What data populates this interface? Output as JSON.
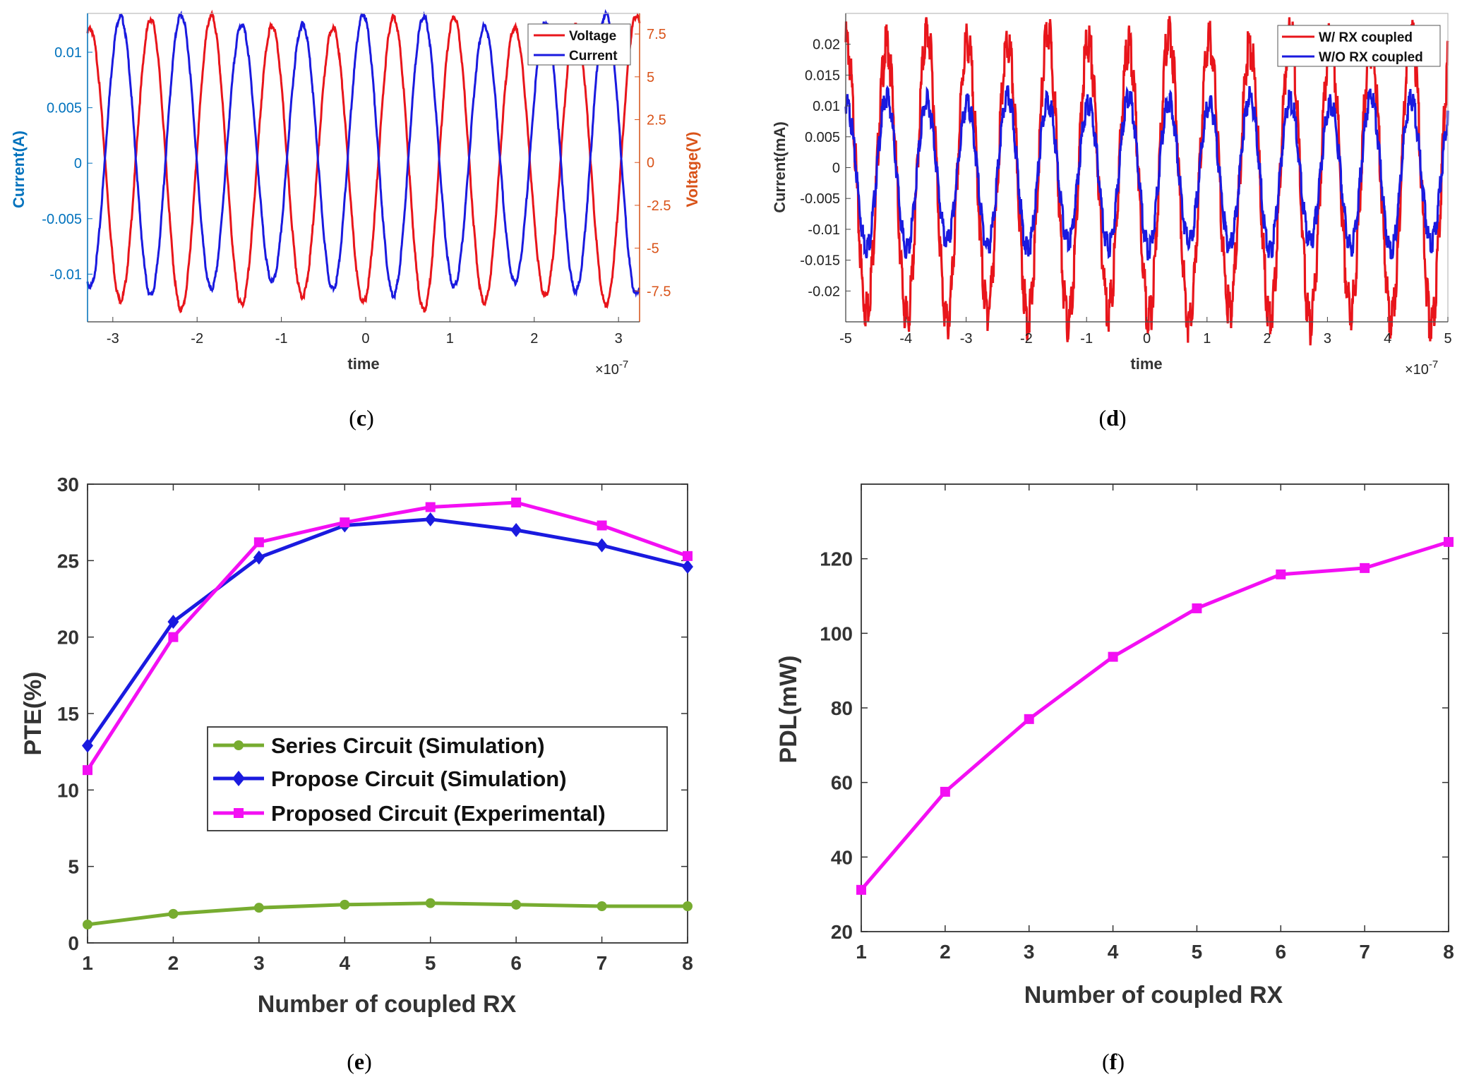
{
  "chart_data": [
    {
      "id": "c",
      "type": "line",
      "caption_prefix": "(",
      "caption_letter": "c",
      "caption_suffix": ")",
      "xlabel": "time",
      "x_exponent": "×10",
      "x_exponent_power": "-7",
      "ylabel_left": "Current(A)",
      "ylabel_right": "Voltage(V)",
      "xlim": [
        -3.3,
        3.25
      ],
      "ylim_left": [
        -0.0143,
        0.0135
      ],
      "ylim_right": [
        -9.3,
        8.7
      ],
      "xticks": [
        "-3",
        "-2",
        "-1",
        "0",
        "1",
        "2",
        "3"
      ],
      "yticks_left": [
        "0.01",
        "0.005",
        "0",
        "-0.005",
        "-0.01"
      ],
      "yticks_right": [
        "7.5",
        "5",
        "2.5",
        "0",
        "-2.5",
        "-5",
        "-7.5"
      ],
      "left_axis_color": "#0072bd",
      "right_axis_color": "#d95319",
      "series": [
        {
          "name": "Voltage",
          "color": "#e8151b",
          "axis": "right",
          "amplitude": 8.2,
          "period_1e7": 0.72,
          "phase_peak_1e7": -2.55
        },
        {
          "name": "Current",
          "color": "#1a1adf",
          "axis": "left",
          "amplitude": 0.0121,
          "offset": 0.0008,
          "period_1e7": 0.72,
          "phase_peak_1e7": -2.91
        }
      ],
      "legend_location": "top-right"
    },
    {
      "id": "d",
      "type": "line",
      "caption_prefix": "(",
      "caption_letter": "d",
      "caption_suffix": ")",
      "xlabel": "time",
      "x_exponent": "×10",
      "x_exponent_power": "-7",
      "ylabel": "Current(mA)",
      "xlim": [
        -5,
        5
      ],
      "ylim": [
        -0.025,
        0.025
      ],
      "xticks": [
        "-5",
        "-4",
        "-3",
        "-2",
        "-1",
        "0",
        "1",
        "2",
        "3",
        "4",
        "5"
      ],
      "yticks": [
        "0.02",
        "0.015",
        "0.01",
        "0.005",
        "0",
        "-0.005",
        "-0.01",
        "-0.015",
        "-0.02"
      ],
      "series": [
        {
          "name": "W/ RX coupled",
          "color": "#e8151b",
          "amplitude": 0.0225,
          "offset": 0.0,
          "period_1e7": 0.67,
          "phase_peak_1e7": -4.32
        },
        {
          "name": "W/O RX coupled",
          "color": "#1a1adf",
          "amplitude": 0.0118,
          "offset": 0.0,
          "period_1e7": 0.67,
          "phase_peak_1e7": -4.32
        }
      ],
      "legend_location": "top-right"
    },
    {
      "id": "e",
      "type": "line",
      "caption_prefix": "(",
      "caption_letter": "e",
      "caption_suffix": ")",
      "xlabel": "Number of coupled RX",
      "ylabel": "PTE(%)",
      "xlim": [
        1,
        8
      ],
      "ylim": [
        0,
        30
      ],
      "xticks": [
        "1",
        "2",
        "3",
        "4",
        "5",
        "6",
        "7",
        "8"
      ],
      "yticks": [
        "0",
        "5",
        "10",
        "15",
        "20",
        "25",
        "30"
      ],
      "x": [
        1,
        2,
        3,
        4,
        5,
        6,
        7,
        8
      ],
      "series": [
        {
          "name": "Series Circuit (Simulation)",
          "color": "#77ac30",
          "marker": "circle",
          "values": [
            1.2,
            1.9,
            2.3,
            2.5,
            2.6,
            2.5,
            2.4,
            2.4
          ]
        },
        {
          "name": "Propose Circuit (Simulation)",
          "color": "#1a1adf",
          "marker": "diamond",
          "values": [
            12.9,
            21.0,
            25.2,
            27.3,
            27.7,
            27.0,
            26.0,
            24.6
          ]
        },
        {
          "name": "Proposed Circuit (Experimental)",
          "color": "#f30ff3",
          "marker": "square",
          "values": [
            11.3,
            20.0,
            26.2,
            27.5,
            28.5,
            28.8,
            27.3,
            25.3
          ]
        }
      ],
      "legend_location": "center-left"
    },
    {
      "id": "f",
      "type": "line",
      "caption_prefix": "(",
      "caption_letter": "f",
      "caption_suffix": ")",
      "xlabel": "Number of coupled RX",
      "ylabel": "PDL(mW)",
      "xlim": [
        1,
        8
      ],
      "ylim": [
        20,
        140
      ],
      "xticks": [
        "1",
        "2",
        "3",
        "4",
        "5",
        "6",
        "7",
        "8"
      ],
      "yticks": [
        "20",
        "40",
        "60",
        "80",
        "100",
        "120"
      ],
      "x": [
        1,
        2,
        3,
        4,
        5,
        6,
        7,
        8
      ],
      "series": [
        {
          "name": "PDL",
          "color": "#f30ff3",
          "marker": "square",
          "values": [
            31.2,
            57.5,
            77.0,
            93.7,
            106.7,
            115.8,
            117.5,
            124.5
          ]
        }
      ]
    }
  ]
}
